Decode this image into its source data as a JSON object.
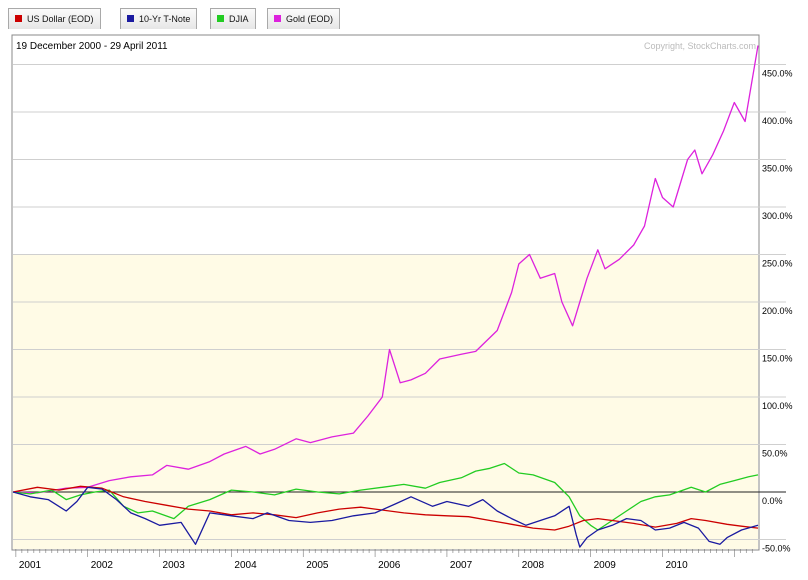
{
  "legend": [
    {
      "label": "US Dollar (EOD)",
      "color": "#cc0000"
    },
    {
      "label": "10-Yr T-Note",
      "color": "#1a1aa0"
    },
    {
      "label": "DJIA",
      "color": "#22cc22"
    },
    {
      "label": "Gold (EOD)",
      "color": "#dd22dd"
    }
  ],
  "chart_data": {
    "type": "line",
    "date_range_label": "19 December 2000 - 29 April 2011",
    "copyright": "Copyright, StockCharts.com",
    "x_range": [
      2000.96,
      2011.33
    ],
    "x_tick_labels": [
      "2001",
      "2002",
      "2003",
      "2004",
      "2005",
      "2006",
      "2007",
      "2008",
      "2009",
      "2010"
    ],
    "y_range_percent": [
      -60,
      480
    ],
    "y_tick_labels": [
      "450.0%",
      "400.0%",
      "350.0%",
      "300.0%",
      "250.0%",
      "200.0%",
      "150.0%",
      "100.0%",
      "50.0%",
      "0.0%",
      "-50.0%"
    ],
    "y_tick_values": [
      450,
      400,
      350,
      300,
      250,
      200,
      150,
      100,
      50,
      0,
      -50
    ],
    "series": [
      {
        "name": "Gold (EOD)",
        "color": "#dd22dd",
        "x": [
          2000.96,
          2001.3,
          2001.7,
          2002.0,
          2002.3,
          2002.6,
          2002.9,
          2003.1,
          2003.4,
          2003.7,
          2003.9,
          2004.2,
          2004.4,
          2004.6,
          2004.9,
          2005.1,
          2005.4,
          2005.7,
          2005.9,
          2006.1,
          2006.2,
          2006.35,
          2006.5,
          2006.7,
          2006.9,
          2007.2,
          2007.4,
          2007.7,
          2007.9,
          2008.0,
          2008.15,
          2008.3,
          2008.5,
          2008.6,
          2008.75,
          2008.85,
          2008.95,
          2009.1,
          2009.2,
          2009.4,
          2009.6,
          2009.75,
          2009.9,
          2010.0,
          2010.15,
          2010.35,
          2010.45,
          2010.55,
          2010.7,
          2010.85,
          2011.0,
          2011.15,
          2011.33
        ],
        "values": [
          0,
          -1,
          4,
          5,
          12,
          16,
          18,
          28,
          24,
          32,
          40,
          48,
          40,
          45,
          56,
          52,
          58,
          62,
          80,
          100,
          150,
          115,
          118,
          125,
          140,
          145,
          148,
          170,
          210,
          240,
          250,
          225,
          230,
          200,
          175,
          200,
          225,
          255,
          235,
          245,
          260,
          280,
          330,
          310,
          300,
          350,
          360,
          335,
          355,
          380,
          410,
          390,
          470
        ]
      },
      {
        "name": "DJIA",
        "color": "#22cc22",
        "x": [
          2000.96,
          2001.2,
          2001.5,
          2001.7,
          2001.9,
          2002.1,
          2002.3,
          2002.5,
          2002.7,
          2002.9,
          2003.2,
          2003.4,
          2003.7,
          2004.0,
          2004.3,
          2004.6,
          2004.9,
          2005.2,
          2005.5,
          2005.8,
          2006.1,
          2006.4,
          2006.7,
          2006.9,
          2007.2,
          2007.4,
          2007.6,
          2007.8,
          2008.0,
          2008.2,
          2008.5,
          2008.7,
          2008.85,
          2009.0,
          2009.1,
          2009.3,
          2009.5,
          2009.7,
          2009.9,
          2010.1,
          2010.4,
          2010.6,
          2010.8,
          2011.0,
          2011.2,
          2011.33
        ],
        "values": [
          0,
          -2,
          2,
          -8,
          -3,
          0,
          2,
          -15,
          -22,
          -20,
          -28,
          -15,
          -8,
          2,
          0,
          -3,
          3,
          0,
          -2,
          2,
          5,
          8,
          4,
          10,
          15,
          22,
          25,
          30,
          20,
          18,
          10,
          -5,
          -25,
          -35,
          -40,
          -30,
          -20,
          -10,
          -5,
          -3,
          5,
          0,
          8,
          12,
          16,
          18
        ]
      },
      {
        "name": "US Dollar (EOD)",
        "color": "#cc0000",
        "x": [
          2000.96,
          2001.3,
          2001.6,
          2001.9,
          2002.2,
          2002.5,
          2002.8,
          2003.1,
          2003.4,
          2003.7,
          2004.0,
          2004.3,
          2004.6,
          2004.9,
          2005.2,
          2005.5,
          2005.8,
          2006.0,
          2006.4,
          2006.7,
          2007.0,
          2007.3,
          2007.6,
          2007.9,
          2008.2,
          2008.5,
          2008.7,
          2008.9,
          2009.1,
          2009.3,
          2009.6,
          2009.9,
          2010.2,
          2010.4,
          2010.6,
          2010.9,
          2011.1,
          2011.33
        ],
        "values": [
          0,
          5,
          2,
          6,
          4,
          -5,
          -10,
          -14,
          -18,
          -20,
          -24,
          -22,
          -24,
          -27,
          -22,
          -18,
          -16,
          -18,
          -22,
          -24,
          -25,
          -26,
          -30,
          -34,
          -38,
          -40,
          -36,
          -30,
          -28,
          -30,
          -33,
          -37,
          -33,
          -28,
          -30,
          -34,
          -36,
          -38
        ]
      },
      {
        "name": "10-Yr T-Note",
        "color": "#1a1aa0",
        "x": [
          2000.96,
          2001.2,
          2001.45,
          2001.7,
          2001.85,
          2002.0,
          2002.2,
          2002.4,
          2002.6,
          2002.8,
          2003.0,
          2003.3,
          2003.5,
          2003.7,
          2004.0,
          2004.3,
          2004.5,
          2004.8,
          2005.1,
          2005.4,
          2005.7,
          2006.0,
          2006.3,
          2006.5,
          2006.8,
          2007.0,
          2007.3,
          2007.5,
          2007.7,
          2007.9,
          2008.1,
          2008.3,
          2008.5,
          2008.7,
          2008.8,
          2008.85,
          2008.95,
          2009.1,
          2009.3,
          2009.5,
          2009.7,
          2009.9,
          2010.1,
          2010.3,
          2010.5,
          2010.65,
          2010.8,
          2010.9,
          2011.1,
          2011.33
        ],
        "values": [
          0,
          -5,
          -8,
          -20,
          -10,
          5,
          3,
          -8,
          -22,
          -28,
          -35,
          -32,
          -55,
          -22,
          -25,
          -28,
          -22,
          -30,
          -32,
          -30,
          -25,
          -22,
          -12,
          -5,
          -15,
          -10,
          -15,
          -8,
          -20,
          -28,
          -35,
          -30,
          -25,
          -15,
          -45,
          -58,
          -48,
          -40,
          -35,
          -28,
          -30,
          -40,
          -38,
          -32,
          -38,
          -52,
          -55,
          -48,
          -40,
          -35
        ]
      }
    ]
  }
}
